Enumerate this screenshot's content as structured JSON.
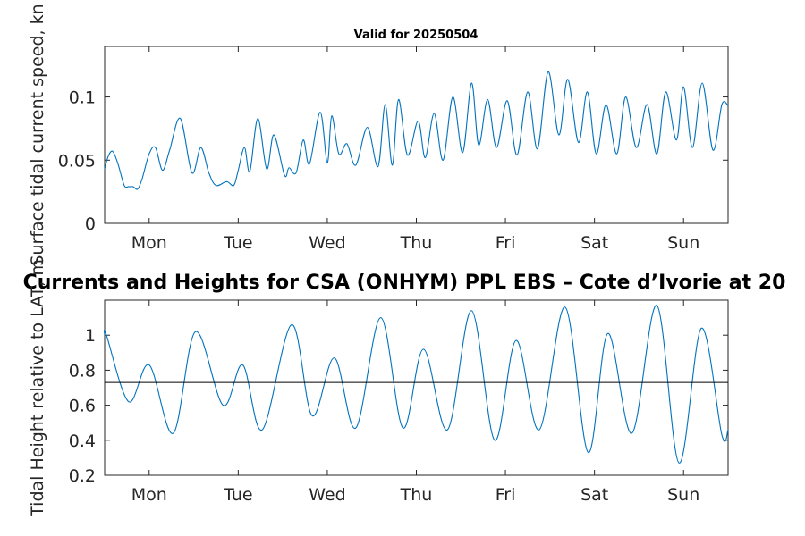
{
  "chart_data": [
    {
      "type": "line",
      "title": "Valid for 20250504",
      "ylabel": "Surface tidal current speed, kn",
      "xlim": [
        0,
        7
      ],
      "ylim": [
        0,
        0.14
      ],
      "xticks": [
        0.5,
        1.5,
        2.5,
        3.5,
        4.5,
        5.5,
        6.5
      ],
      "xtick_labels": [
        "Mon",
        "Tue",
        "Wed",
        "Thu",
        "Fri",
        "Sat",
        "Sun"
      ],
      "yticks": [
        0,
        0.05,
        0.1
      ],
      "ytick_labels": [
        "0",
        "0.05",
        "0.1"
      ],
      "series": [
        {
          "color": "#0072BD",
          "x": [
            0,
            0.04,
            0.09,
            0.15,
            0.22,
            0.27,
            0.32,
            0.37,
            0.42,
            0.5,
            0.57,
            0.65,
            0.73,
            0.85,
            0.98,
            1.08,
            1.17,
            1.25,
            1.37,
            1.45,
            1.5,
            1.57,
            1.63,
            1.72,
            1.82,
            1.9,
            2.02,
            2.07,
            2.15,
            2.23,
            2.3,
            2.42,
            2.5,
            2.55,
            2.63,
            2.72,
            2.82,
            2.95,
            3.07,
            3.15,
            3.23,
            3.3,
            3.4,
            3.52,
            3.6,
            3.7,
            3.8,
            3.91,
            4.02,
            4.12,
            4.2,
            4.3,
            4.4,
            4.52,
            4.63,
            4.75,
            4.86,
            4.98,
            5.1,
            5.2,
            5.32,
            5.42,
            5.52,
            5.63,
            5.75,
            5.85,
            5.97,
            6.09,
            6.2,
            6.3,
            6.42,
            6.5,
            6.6,
            6.71,
            6.83,
            6.93,
            7
          ],
          "y": [
            0.043,
            0.053,
            0.057,
            0.047,
            0.03,
            0.029,
            0.029,
            0.027,
            0.035,
            0.055,
            0.06,
            0.042,
            0.058,
            0.083,
            0.04,
            0.06,
            0.04,
            0.03,
            0.033,
            0.03,
            0.042,
            0.06,
            0.041,
            0.083,
            0.043,
            0.07,
            0.038,
            0.044,
            0.04,
            0.066,
            0.047,
            0.088,
            0.048,
            0.085,
            0.055,
            0.063,
            0.046,
            0.076,
            0.045,
            0.094,
            0.046,
            0.098,
            0.054,
            0.081,
            0.052,
            0.087,
            0.05,
            0.1,
            0.056,
            0.111,
            0.062,
            0.098,
            0.06,
            0.097,
            0.054,
            0.104,
            0.059,
            0.12,
            0.07,
            0.114,
            0.064,
            0.104,
            0.055,
            0.094,
            0.055,
            0.1,
            0.06,
            0.094,
            0.055,
            0.104,
            0.066,
            0.108,
            0.06,
            0.111,
            0.058,
            0.094,
            0.093
          ]
        }
      ]
    },
    {
      "type": "line",
      "title": "Currents and Heights for CSA (ONHYM) PPL EBS  – Cote d’Ivorie at 20",
      "ylabel": "Tidal Height relative to LAT, m",
      "xlim": [
        0,
        7
      ],
      "ylim": [
        0.2,
        1.2
      ],
      "xticks": [
        0.5,
        1.5,
        2.5,
        3.5,
        4.5,
        5.5,
        6.5
      ],
      "xtick_labels": [
        "Mon",
        "Tue",
        "Wed",
        "Thu",
        "Fri",
        "Sat",
        "Sun"
      ],
      "yticks": [
        0.2,
        0.4,
        0.6,
        0.8,
        1
      ],
      "ytick_labels": [
        "0.2",
        "0.4",
        "0.6",
        "0.8",
        "1"
      ],
      "reference_line": 0.73,
      "series": [
        {
          "color": "#0072BD",
          "x": [
            0,
            0.02,
            0.27,
            0.5,
            0.77,
            1.02,
            1.33,
            1.55,
            1.77,
            2.1,
            2.33,
            2.58,
            2.82,
            3.1,
            3.35,
            3.58,
            3.85,
            4.12,
            4.38,
            4.62,
            4.88,
            5.17,
            5.43,
            5.65,
            5.92,
            6.2,
            6.45,
            6.7,
            6.93,
            7
          ],
          "y": [
            1.0,
            1.0,
            0.62,
            0.83,
            0.44,
            1.02,
            0.6,
            0.83,
            0.46,
            1.06,
            0.54,
            0.87,
            0.47,
            1.1,
            0.47,
            0.92,
            0.46,
            1.14,
            0.4,
            0.97,
            0.46,
            1.16,
            0.33,
            1.01,
            0.44,
            1.17,
            0.27,
            1.04,
            0.43,
            0.46
          ]
        }
      ]
    }
  ]
}
